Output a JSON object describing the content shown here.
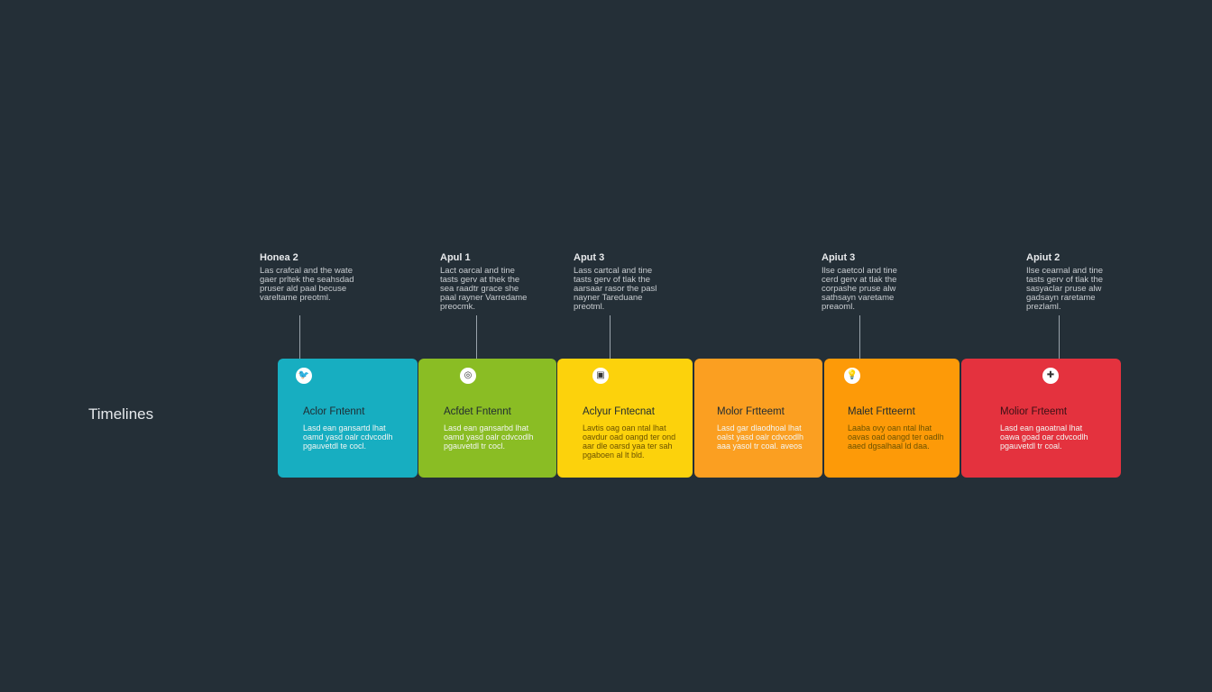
{
  "title": "Timelines",
  "labels": [
    {
      "heading": "Honea 2",
      "text": "Las crafcal and the wate gaer prltek the seahsdad pruser ald paal becuse vareltame preotml."
    },
    {
      "heading": "Apul 1",
      "text": "Lact oarcal and tine tasts gerv at thek the sea raadtr grace she paal rayner Varredame preocmk."
    },
    {
      "heading": "Aput 3",
      "text": "Lass cartcal and tine tasts gerv of tlak the aarsaar rasor the pasl nayner Tareduane preotml."
    },
    {
      "heading": "Apiut 3",
      "text": "Ilse caetcol and tine cerd gerv at tlak the corpashe pruse alw sathsayn varetame preaoml."
    },
    {
      "heading": "Apiut 2",
      "text": "Ilse cearnal and tine tasts gerv of tlak the sasyaclar pruse alw gadsayn raretame prezlaml."
    }
  ],
  "cards": [
    {
      "icon": "bird-icon",
      "color": "#17aec1",
      "title": "Aclor Fntennt",
      "text": "Lasd ean gansartd lhat oamd yasd oalr cdvcodlh pgauvetdl te cocl.",
      "dark": false
    },
    {
      "icon": "camera-icon",
      "color": "#8abd24",
      "title": "Acfdet Fntennt",
      "text": "Lasd ean gansarbd lhat oamd yasd oalr cdvcodlh pgauvetdl tr cocl.",
      "dark": false
    },
    {
      "icon": "image-icon",
      "color": "#fcd20c",
      "title": "Aclyur Fntecnat",
      "text": "Lavtis oag oan ntal lhat oavdur oad oangd ter ond aar dle oarsd yaa ter sah pgaboen al lt bld.",
      "dark": true
    },
    {
      "icon": "",
      "color": "#fb9f21",
      "title": "Molor Frtteemt",
      "text": "Lasd gar dlaodhoal lhat oalst yasd oalr cdvcodlh aaa yasol tr coal. aveos",
      "dark": false
    },
    {
      "icon": "lightbulb-icon",
      "color": "#fd9a08",
      "title": "Malet Frtteernt",
      "text": "Laaba ovy oan ntal lhat oavas oad oangd ter oadlh aaed dgsalhaal ld daa.",
      "dark": true
    },
    {
      "icon": "plus-icon",
      "color": "#e4323e",
      "title": "Molior Frteemt",
      "text": "Lasd ean gaoatnal lhat oawa goad oar cdvcodlh pgauvetdl tr coal.",
      "dark": false
    }
  ]
}
